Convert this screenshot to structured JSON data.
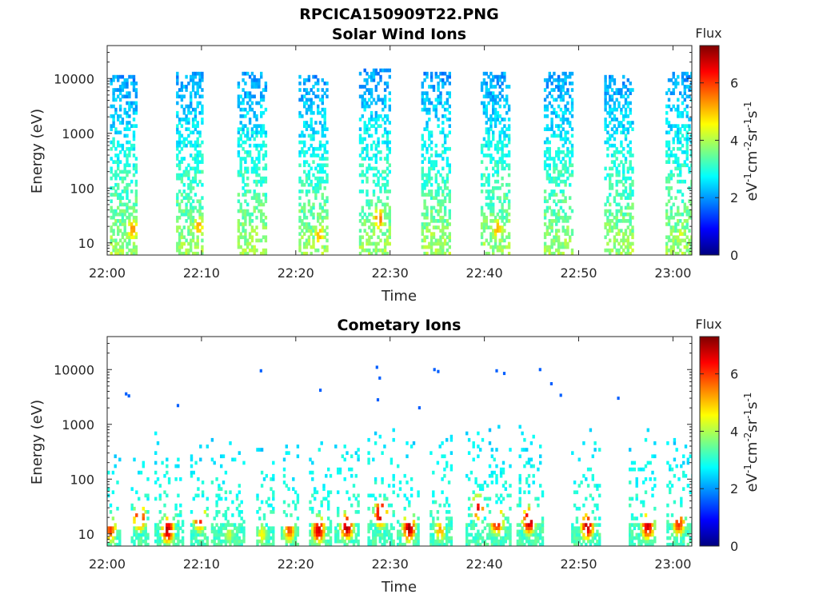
{
  "figure_title": "RPCICA150909T22.PNG",
  "chart_data": [
    {
      "type": "heatmap",
      "title": "Solar Wind Ions",
      "xlabel": "Time",
      "ylabel": "Energy (eV)",
      "xticks": [
        "22:00",
        "22:10",
        "22:20",
        "22:30",
        "22:40",
        "22:50",
        "23:00"
      ],
      "x_range_minutes": [
        0,
        62
      ],
      "y_scale": "log",
      "yticks": [
        "10",
        "100",
        "1000",
        "10000"
      ],
      "ylim": [
        6,
        40000
      ],
      "colorbar": {
        "title": "Flux",
        "label": "eV-1cm-2sr-1s-1",
        "ticks": [
          "0",
          "2",
          "4",
          "6"
        ],
        "range": [
          0,
          7.3
        ],
        "colormap": "jet"
      },
      "bursts": [
        {
          "start_min": 0.3,
          "end_min": 3.0,
          "e_top": 12000,
          "peak_min": 2.6,
          "peak_e": 18,
          "peak_flux": 5.4
        },
        {
          "start_min": 7.3,
          "end_min": 10.0,
          "e_top": 13000,
          "peak_min": 9.6,
          "peak_e": 20,
          "peak_flux": 5.2
        },
        {
          "start_min": 13.8,
          "end_min": 16.8,
          "e_top": 14000,
          "peak_min": 15.4,
          "peak_e": 14,
          "peak_flux": 4.4
        },
        {
          "start_min": 20.3,
          "end_min": 23.3,
          "e_top": 12000,
          "peak_min": 22.4,
          "peak_e": 14,
          "peak_flux": 5.2
        },
        {
          "start_min": 26.7,
          "end_min": 29.9,
          "e_top": 15000,
          "peak_min": 28.7,
          "peak_e": 28,
          "peak_flux": 5.6
        },
        {
          "start_min": 33.3,
          "end_min": 36.3,
          "e_top": 13000,
          "peak_min": 34.3,
          "peak_e": 16,
          "peak_flux": 4.2
        },
        {
          "start_min": 39.6,
          "end_min": 42.6,
          "e_top": 14000,
          "peak_min": 41.3,
          "peak_e": 18,
          "peak_flux": 5.2
        },
        {
          "start_min": 46.3,
          "end_min": 49.3,
          "e_top": 13000,
          "peak_min": 47.8,
          "peak_e": 14,
          "peak_flux": 4.0
        },
        {
          "start_min": 52.7,
          "end_min": 55.7,
          "e_top": 12000,
          "peak_min": 54.1,
          "peak_e": 14,
          "peak_flux": 4.0
        },
        {
          "start_min": 59.2,
          "end_min": 62.0,
          "e_top": 14000,
          "peak_min": 60.7,
          "peak_e": 14,
          "peak_flux": 4.4
        }
      ]
    },
    {
      "type": "heatmap",
      "title": "Cometary Ions",
      "xlabel": "Time",
      "ylabel": "Energy (eV)",
      "xticks": [
        "22:00",
        "22:10",
        "22:20",
        "22:30",
        "22:40",
        "22:50",
        "23:00"
      ],
      "x_range_minutes": [
        0,
        62
      ],
      "y_scale": "log",
      "yticks": [
        "10",
        "100",
        "1000",
        "10000"
      ],
      "ylim": [
        6,
        40000
      ],
      "colorbar": {
        "title": "Flux",
        "label": "eV-1cm-2sr-1s-1",
        "ticks": [
          "0",
          "2",
          "4",
          "6"
        ],
        "range": [
          0,
          7.3
        ],
        "colormap": "jet"
      },
      "bursts": [
        {
          "start_min": 0.0,
          "end_min": 1.3,
          "e_top": 300,
          "peak_min": 0.2,
          "peak_e": 12,
          "peak_flux": 6.0
        },
        {
          "start_min": 2.5,
          "end_min": 4.2,
          "e_top": 400,
          "peak_min": 3.3,
          "peak_e": 20,
          "peak_flux": 6.6
        },
        {
          "start_min": 5.0,
          "end_min": 8.0,
          "e_top": 900,
          "peak_min": 6.3,
          "peak_e": 12,
          "peak_flux": 6.9
        },
        {
          "start_min": 8.8,
          "end_min": 10.5,
          "e_top": 400,
          "peak_min": 9.7,
          "peak_e": 20,
          "peak_flux": 6.6
        },
        {
          "start_min": 11.0,
          "end_min": 14.5,
          "e_top": 800,
          "peak_min": 12.8,
          "peak_e": 10,
          "peak_flux": 4.2
        },
        {
          "start_min": 15.8,
          "end_min": 17.5,
          "e_top": 400,
          "peak_min": 16.3,
          "peak_e": 10,
          "peak_flux": 4.6
        },
        {
          "start_min": 18.4,
          "end_min": 20.2,
          "e_top": 500,
          "peak_min": 19.2,
          "peak_e": 12,
          "peak_flux": 5.8
        },
        {
          "start_min": 21.4,
          "end_min": 23.6,
          "e_top": 700,
          "peak_min": 22.3,
          "peak_e": 12,
          "peak_flux": 6.8
        },
        {
          "start_min": 24.1,
          "end_min": 26.6,
          "e_top": 800,
          "peak_min": 25.3,
          "peak_e": 14,
          "peak_flux": 7.0
        },
        {
          "start_min": 27.6,
          "end_min": 30.3,
          "e_top": 1000,
          "peak_min": 28.9,
          "peak_e": 24,
          "peak_flux": 7.1
        },
        {
          "start_min": 30.7,
          "end_min": 33.1,
          "e_top": 800,
          "peak_min": 31.9,
          "peak_e": 13,
          "peak_flux": 7.0
        },
        {
          "start_min": 34.2,
          "end_min": 36.6,
          "e_top": 700,
          "peak_min": 35.2,
          "peak_e": 12,
          "peak_flux": 5.2
        },
        {
          "start_min": 38.0,
          "end_min": 40.0,
          "e_top": 800,
          "peak_min": 39.2,
          "peak_e": 30,
          "peak_flux": 6.5
        },
        {
          "start_min": 40.2,
          "end_min": 42.8,
          "e_top": 1000,
          "peak_min": 41.2,
          "peak_e": 18,
          "peak_flux": 6.9
        },
        {
          "start_min": 43.4,
          "end_min": 46.2,
          "e_top": 1000,
          "peak_min": 44.6,
          "peak_e": 18,
          "peak_flux": 7.1
        },
        {
          "start_min": 49.2,
          "end_min": 52.2,
          "e_top": 900,
          "peak_min": 50.8,
          "peak_e": 14,
          "peak_flux": 6.9
        },
        {
          "start_min": 55.3,
          "end_min": 58.0,
          "e_top": 800,
          "peak_min": 57.2,
          "peak_e": 14,
          "peak_flux": 6.8
        },
        {
          "start_min": 59.3,
          "end_min": 62.0,
          "e_top": 600,
          "peak_min": 60.5,
          "peak_e": 16,
          "peak_flux": 6.2
        }
      ],
      "sparse_high_energy_points": [
        {
          "min": 2.0,
          "e": 3600
        },
        {
          "min": 2.3,
          "e": 3300
        },
        {
          "min": 16.3,
          "e": 9500
        },
        {
          "min": 22.6,
          "e": 4200
        },
        {
          "min": 28.6,
          "e": 11000
        },
        {
          "min": 28.9,
          "e": 7000
        },
        {
          "min": 28.7,
          "e": 2800
        },
        {
          "min": 34.7,
          "e": 10000
        },
        {
          "min": 35.1,
          "e": 9200
        },
        {
          "min": 41.3,
          "e": 9500
        },
        {
          "min": 42.1,
          "e": 8500
        },
        {
          "min": 45.9,
          "e": 10000
        },
        {
          "min": 47.1,
          "e": 5500
        },
        {
          "min": 48.1,
          "e": 3400
        },
        {
          "min": 54.2,
          "e": 3000
        },
        {
          "min": 7.5,
          "e": 2200
        },
        {
          "min": 33.1,
          "e": 2000
        }
      ]
    }
  ]
}
